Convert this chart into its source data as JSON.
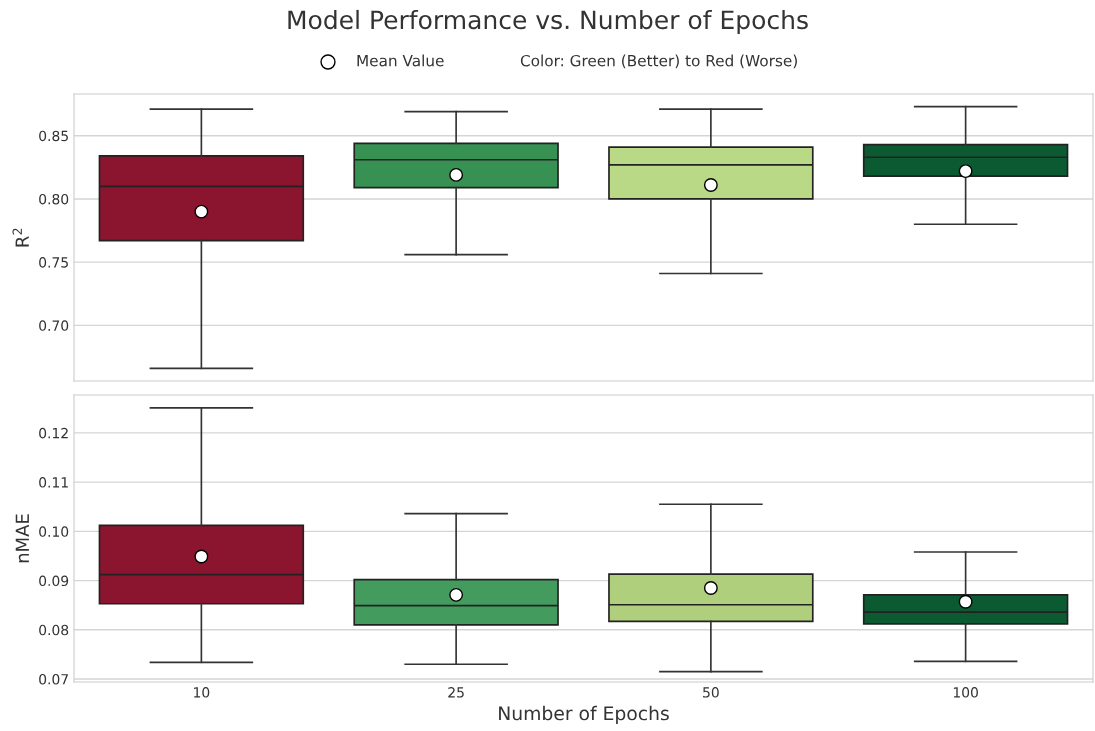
{
  "chart_data": [
    {
      "type": "box",
      "title": "Model Performance vs. Number of Epochs",
      "ylabel": "R$^{2}$",
      "categories": [
        "10",
        "25",
        "50",
        "100"
      ],
      "colors": [
        "#8b152f",
        "#369152",
        "#b9d986",
        "#0b5a31"
      ],
      "boxes": [
        {
          "low": 0.666,
          "q1": 0.767,
          "median": 0.81,
          "q3": 0.834,
          "high": 0.871,
          "mean": 0.79
        },
        {
          "low": 0.756,
          "q1": 0.809,
          "median": 0.831,
          "q3": 0.844,
          "high": 0.869,
          "mean": 0.819
        },
        {
          "low": 0.741,
          "q1": 0.8,
          "median": 0.827,
          "q3": 0.841,
          "high": 0.871,
          "mean": 0.811
        },
        {
          "low": 0.78,
          "q1": 0.818,
          "median": 0.833,
          "q3": 0.843,
          "high": 0.873,
          "mean": 0.822
        }
      ],
      "ylim": [
        0.656,
        0.883
      ],
      "yticks": [
        {
          "value": 0.7,
          "label": "0.70"
        },
        {
          "value": 0.75,
          "label": "0.75"
        },
        {
          "value": 0.8,
          "label": "0.80"
        },
        {
          "value": 0.85,
          "label": "0.85"
        }
      ],
      "grid": "y",
      "tick_labels": "y",
      "marker": "circle",
      "annotations": [
        "Mean Value",
        "Color: Green (Better) to Red (Worse)"
      ]
    },
    {
      "type": "box",
      "ylabel": "nMAE",
      "xlabel": "Number of Epochs",
      "categories": [
        "10",
        "25",
        "50",
        "100"
      ],
      "colors": [
        "#8b152f",
        "#439c5e",
        "#b0cf7c",
        "#0b5a31"
      ],
      "boxes": [
        {
          "low": 0.0734,
          "q1": 0.0853,
          "median": 0.0912,
          "q3": 0.1012,
          "high": 0.1251,
          "mean": 0.0949
        },
        {
          "low": 0.073,
          "q1": 0.081,
          "median": 0.0849,
          "q3": 0.0902,
          "high": 0.1036,
          "mean": 0.0871
        },
        {
          "low": 0.0715,
          "q1": 0.0817,
          "median": 0.0851,
          "q3": 0.0913,
          "high": 0.1055,
          "mean": 0.0885
        },
        {
          "low": 0.0736,
          "q1": 0.0812,
          "median": 0.0836,
          "q3": 0.0871,
          "high": 0.0958,
          "mean": 0.0857
        }
      ],
      "ylim": [
        0.0694,
        0.1277
      ],
      "yticks": [
        {
          "value": 0.07,
          "label": "0.07"
        },
        {
          "value": 0.08,
          "label": "0.08"
        },
        {
          "value": 0.09,
          "label": "0.09"
        },
        {
          "value": 0.1,
          "label": "0.10"
        },
        {
          "value": 0.11,
          "label": "0.11"
        },
        {
          "value": 0.12,
          "label": "0.12"
        }
      ],
      "grid": "y",
      "marker": "circle"
    }
  ]
}
